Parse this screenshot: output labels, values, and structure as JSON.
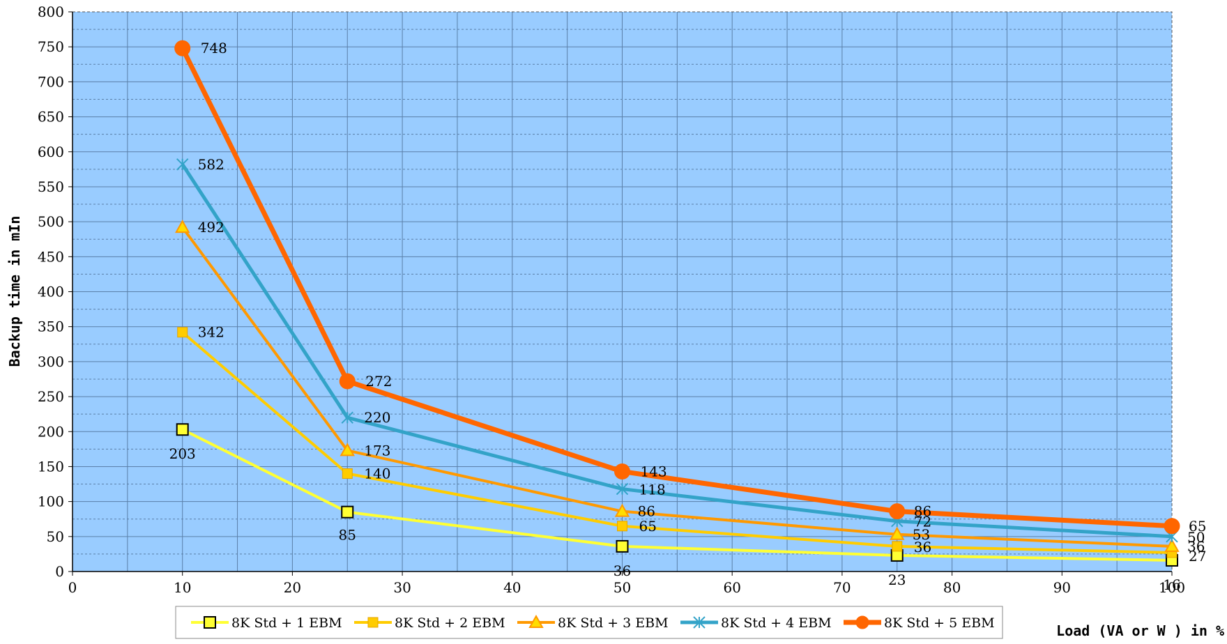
{
  "chart_data": {
    "type": "line",
    "xlabel": "Load (VA or W ) in %",
    "ylabel": "Backup time in mIn",
    "xlim": [
      0,
      100
    ],
    "ylim": [
      0,
      800
    ],
    "xticks": [
      0,
      10,
      20,
      30,
      40,
      50,
      60,
      70,
      80,
      90,
      100
    ],
    "yticks": [
      0,
      50,
      100,
      150,
      200,
      250,
      300,
      350,
      400,
      450,
      500,
      550,
      600,
      650,
      700,
      750,
      800
    ],
    "grid": true,
    "legend_position": "bottom",
    "plot_background": "#99ccff",
    "x": [
      10,
      25,
      50,
      75,
      100
    ],
    "series": [
      {
        "name": "8K Std + 1 EBM",
        "values": [
          203,
          85,
          36,
          23,
          16
        ],
        "color": "#ffff33",
        "marker": "square-open"
      },
      {
        "name": "8K Std + 2 EBM",
        "values": [
          342,
          140,
          65,
          36,
          27
        ],
        "color": "#ffcc00",
        "marker": "square"
      },
      {
        "name": "8K Std + 3 EBM",
        "values": [
          492,
          173,
          86,
          53,
          36
        ],
        "color": "#ff9900",
        "marker": "triangle"
      },
      {
        "name": "8K Std + 4 EBM",
        "values": [
          582,
          220,
          118,
          72,
          50
        ],
        "color": "#33a3c8",
        "marker": "star"
      },
      {
        "name": "8K Std + 5 EBM",
        "values": [
          748,
          272,
          143,
          86,
          65
        ],
        "color": "#ff6600",
        "marker": "circle"
      }
    ]
  }
}
